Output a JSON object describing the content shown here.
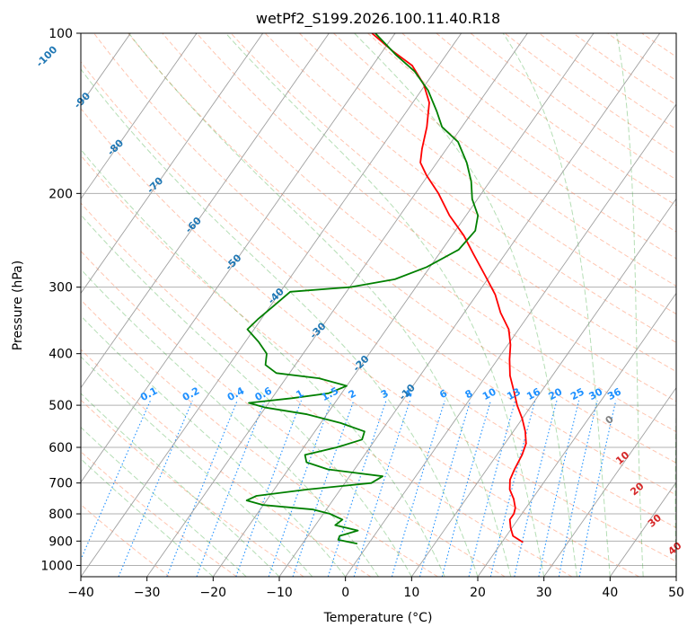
{
  "chart_data": {
    "type": "line",
    "title": "wetPf2_S199.2026.100.11.40.R18",
    "xlabel": "Temperature (°C)",
    "ylabel": "Pressure (hPa)",
    "xlim": [
      -40,
      50
    ],
    "ylim": [
      1050,
      100
    ],
    "x_ticks": [
      -40,
      -30,
      -20,
      -10,
      0,
      10,
      20,
      30,
      40,
      50
    ],
    "x_tick_labels": [
      "−40",
      "−30",
      "−20",
      "−10",
      "0",
      "10",
      "20",
      "30",
      "40",
      "50"
    ],
    "y_ticks": [
      100,
      200,
      300,
      400,
      500,
      600,
      700,
      800,
      900,
      1000
    ],
    "y_tick_labels": [
      "100",
      "200",
      "300",
      "400",
      "500",
      "600",
      "700",
      "800",
      "900",
      "1000"
    ],
    "isotherm_labels": [
      {
        "text": "-100",
        "T": -100,
        "p": 110
      },
      {
        "text": "-90",
        "T": -90,
        "p": 133
      },
      {
        "text": "-80",
        "T": -80,
        "p": 163
      },
      {
        "text": "-70",
        "T": -70,
        "p": 192
      },
      {
        "text": "-60",
        "T": -60,
        "p": 228
      },
      {
        "text": "-50",
        "T": -50,
        "p": 268
      },
      {
        "text": "-40",
        "T": -40,
        "p": 310
      },
      {
        "text": "-30",
        "T": -30,
        "p": 360
      },
      {
        "text": "-20",
        "T": -20,
        "p": 415
      },
      {
        "text": "-10",
        "T": -10,
        "p": 470
      }
    ],
    "mixing_ratio_labels": [
      "0.1",
      "0.2",
      "0.4",
      "0.6",
      "1",
      "1.5",
      "2",
      "3",
      "4",
      "6",
      "8",
      "10",
      "13",
      "16",
      "20",
      "25",
      "30",
      "36"
    ],
    "mixing_ratio_values": [
      0.1,
      0.2,
      0.4,
      0.6,
      1,
      1.5,
      2,
      3,
      4,
      6,
      8,
      10,
      13,
      16,
      20,
      25,
      30,
      36
    ],
    "lcl_labels": [
      {
        "text": "0",
        "T": 23.5,
        "p": 530
      },
      {
        "text": "10",
        "T": 29.5,
        "p": 625
      },
      {
        "text": "20",
        "T": 35,
        "p": 715
      },
      {
        "text": "30",
        "T": 41,
        "p": 820
      },
      {
        "text": "40",
        "T": 47,
        "p": 925
      }
    ],
    "series": [
      {
        "name": "Temperature",
        "color": "#ff0000",
        "points": [
          [
            905,
            23.2
          ],
          [
            880,
            21.0
          ],
          [
            850,
            19.8
          ],
          [
            820,
            18.8
          ],
          [
            800,
            18.8
          ],
          [
            780,
            18.4
          ],
          [
            750,
            17.2
          ],
          [
            720,
            15.6
          ],
          [
            690,
            14.6
          ],
          [
            660,
            14.2
          ],
          [
            620,
            13.8
          ],
          [
            590,
            13.2
          ],
          [
            560,
            11.8
          ],
          [
            530,
            10.0
          ],
          [
            500,
            7.8
          ],
          [
            470,
            5.8
          ],
          [
            440,
            3.6
          ],
          [
            410,
            1.8
          ],
          [
            385,
            0.4
          ],
          [
            360,
            -1.5
          ],
          [
            335,
            -4.5
          ],
          [
            310,
            -7.2
          ],
          [
            285,
            -10.8
          ],
          [
            260,
            -14.8
          ],
          [
            240,
            -18.2
          ],
          [
            220,
            -22.5
          ],
          [
            200,
            -26.5
          ],
          [
            185,
            -30.2
          ],
          [
            175,
            -32.5
          ],
          [
            165,
            -33.7
          ],
          [
            150,
            -35.3
          ],
          [
            135,
            -37.5
          ],
          [
            125,
            -40.2
          ],
          [
            115,
            -44.0
          ],
          [
            108,
            -48.5
          ],
          [
            100,
            -53.5
          ]
        ]
      },
      {
        "name": "Dewpoint",
        "color": "#008000",
        "points": [
          [
            910,
            -1.7
          ],
          [
            895,
            -5.0
          ],
          [
            880,
            -5.2
          ],
          [
            860,
            -3.0
          ],
          [
            840,
            -7.0
          ],
          [
            820,
            -6.5
          ],
          [
            800,
            -9.0
          ],
          [
            785,
            -12.0
          ],
          [
            770,
            -20.0
          ],
          [
            755,
            -23.0
          ],
          [
            740,
            -22.0
          ],
          [
            720,
            -15.0
          ],
          [
            700,
            -6.0
          ],
          [
            680,
            -5.0
          ],
          [
            660,
            -14.0
          ],
          [
            640,
            -18.0
          ],
          [
            620,
            -19.0
          ],
          [
            600,
            -15.0
          ],
          [
            580,
            -12.0
          ],
          [
            560,
            -12.5
          ],
          [
            540,
            -17.0
          ],
          [
            520,
            -23.0
          ],
          [
            505,
            -30.0
          ],
          [
            495,
            -33.0
          ],
          [
            485,
            -27.0
          ],
          [
            475,
            -22.0
          ],
          [
            460,
            -20.0
          ],
          [
            445,
            -25.0
          ],
          [
            435,
            -32.0
          ],
          [
            420,
            -34.5
          ],
          [
            400,
            -35.5
          ],
          [
            380,
            -38.0
          ],
          [
            360,
            -41.0
          ],
          [
            345,
            -40.5
          ],
          [
            325,
            -39.5
          ],
          [
            306,
            -38.5
          ],
          [
            300,
            -30.0
          ],
          [
            290,
            -24.0
          ],
          [
            275,
            -20.5
          ],
          [
            255,
            -17.5
          ],
          [
            235,
            -17.0
          ],
          [
            220,
            -18.2
          ],
          [
            205,
            -20.8
          ],
          [
            190,
            -22.8
          ],
          [
            175,
            -25.5
          ],
          [
            160,
            -29.0
          ],
          [
            150,
            -33.0
          ],
          [
            140,
            -35.5
          ],
          [
            128,
            -39.0
          ],
          [
            118,
            -43.0
          ],
          [
            110,
            -47.5
          ],
          [
            100,
            -53.0
          ]
        ]
      }
    ],
    "colors": {
      "isotherm_label": "#1f77b4",
      "mixing_ratio": "#1e90ff",
      "lcl_label": "#d62728",
      "zero_label": "#808080",
      "dry_adiabat": "#ff7f50",
      "moist_adiabat": "#2ca02c",
      "isotherm_line": "#a0a0a0",
      "grid": "#b0b0b0"
    }
  }
}
